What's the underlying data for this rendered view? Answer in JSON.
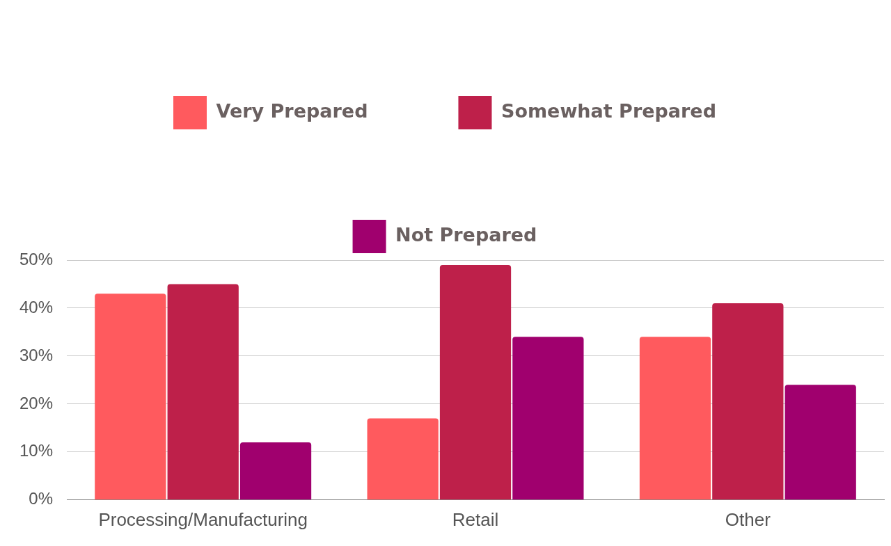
{
  "chart_data": {
    "type": "bar",
    "categories": [
      "Processing/Manufacturing",
      "Retail",
      "Other"
    ],
    "series": [
      {
        "name": "Very Prepared",
        "color": "#ff5a5e",
        "values": [
          43,
          17,
          34
        ]
      },
      {
        "name": "Somewhat Prepared",
        "color": "#be204a",
        "values": [
          45,
          49,
          41
        ]
      },
      {
        "name": "Not Prepared",
        "color": "#a0006e",
        "values": [
          12,
          34,
          24
        ]
      }
    ],
    "ylim": [
      0,
      50
    ],
    "yticks": [
      {
        "value": 0,
        "label": "0%"
      },
      {
        "value": 10,
        "label": "10%"
      },
      {
        "value": 20,
        "label": "20%"
      },
      {
        "value": 30,
        "label": "30%"
      },
      {
        "value": 40,
        "label": "40%"
      },
      {
        "value": 50,
        "label": "50%"
      }
    ],
    "grid": "y",
    "legend": "top"
  }
}
